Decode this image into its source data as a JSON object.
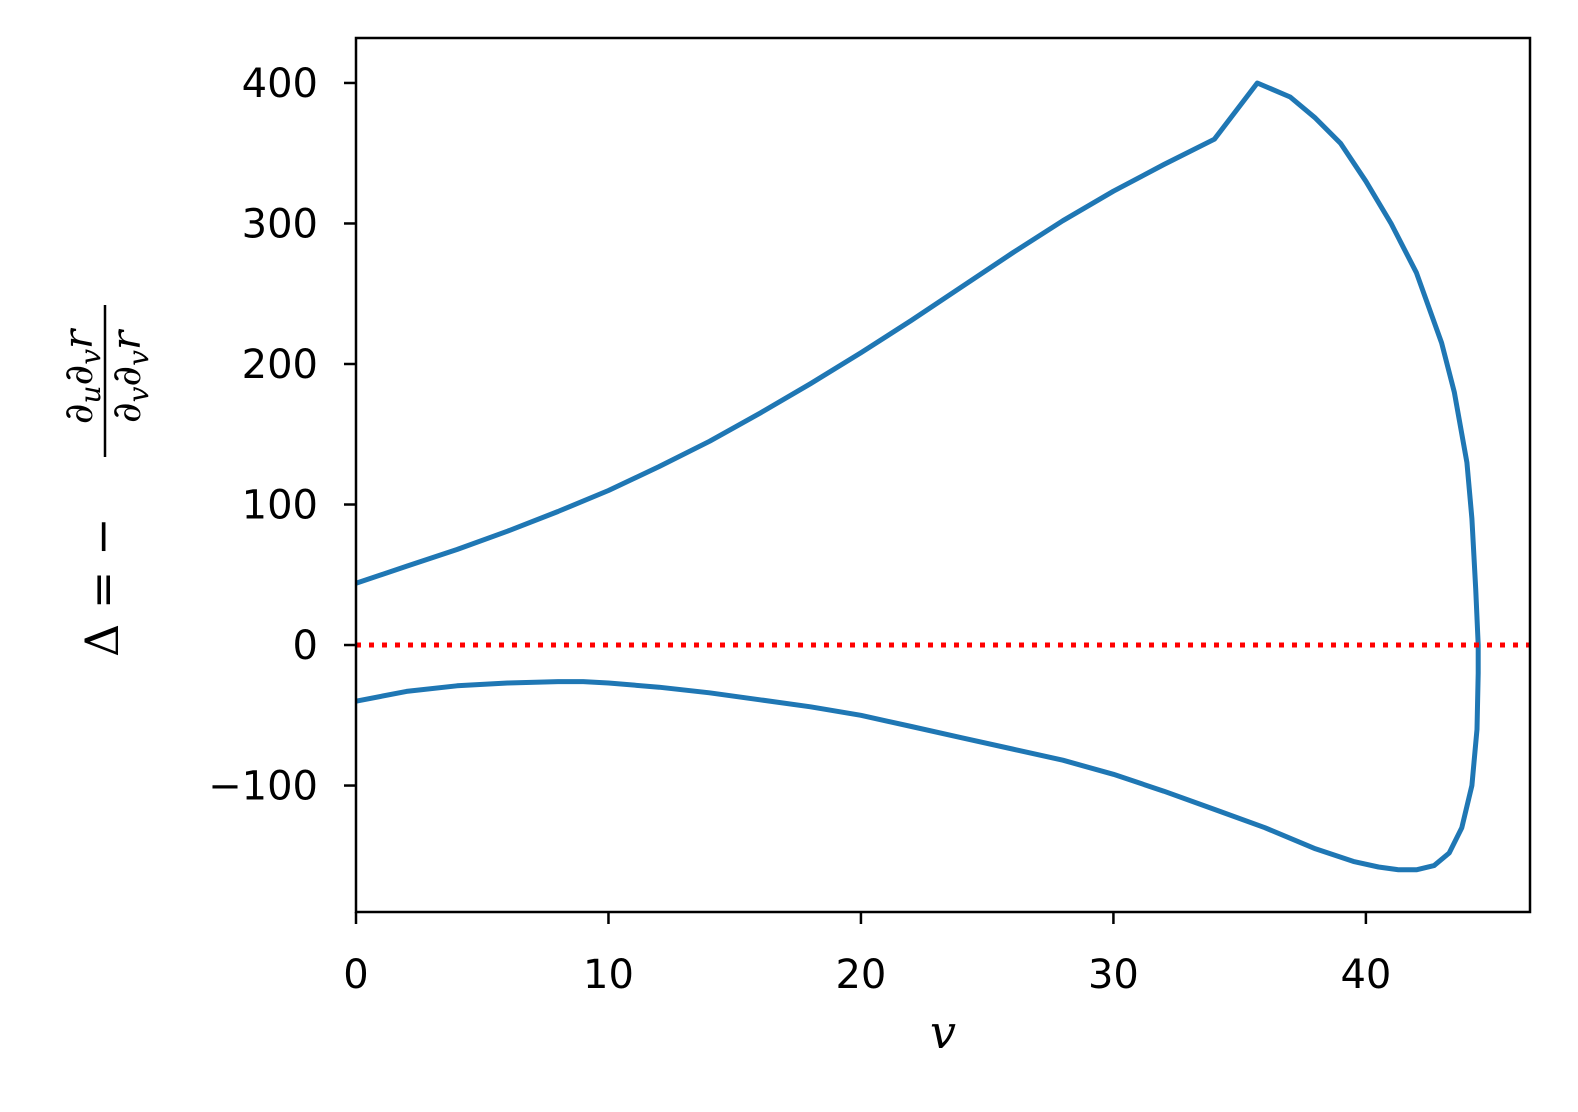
{
  "chart_data": {
    "type": "line",
    "title": "",
    "xlabel": "v",
    "ylabel": {
      "prefix": "Δ = −",
      "numerator": {
        "a": "∂",
        "a_sub": "u",
        "b": "∂",
        "b_sub": "v",
        "c": "r"
      },
      "denominator": {
        "a": "∂",
        "a_sub": "v",
        "b": "∂",
        "b_sub": "v",
        "c": "r"
      }
    },
    "xlim": [
      0,
      46.5
    ],
    "ylim": [
      -190,
      432
    ],
    "xticks": [
      0,
      10,
      20,
      30,
      40
    ],
    "yticks": [
      -100,
      0,
      100,
      200,
      300,
      400
    ],
    "xtick_labels": [
      "0",
      "10",
      "20",
      "30",
      "40"
    ],
    "ytick_labels": [
      "−100",
      "0",
      "100",
      "200",
      "300",
      "400"
    ],
    "grid": false,
    "series": [
      {
        "color": "#1f77b4",
        "style": "solid",
        "x": [
          0,
          2,
          4,
          6,
          8,
          10,
          12,
          14,
          16,
          18,
          20,
          22,
          24,
          26,
          28,
          30,
          32,
          34,
          35.7,
          37,
          38,
          39,
          40,
          41,
          42,
          43,
          43.5,
          44,
          44.2,
          44.35,
          44.45,
          44.45,
          44.4,
          44.2,
          43.8,
          43.3,
          42.7,
          42,
          41.3,
          40.5,
          39.5,
          38,
          36,
          34,
          32,
          30,
          28,
          26,
          24,
          22,
          20,
          18,
          16,
          14,
          12,
          10,
          9,
          8,
          6,
          4,
          2,
          0
        ],
        "y": [
          44,
          56,
          68,
          81,
          95,
          110,
          127,
          145,
          165,
          186,
          208,
          231,
          255,
          279,
          302,
          323,
          342,
          360,
          400,
          390,
          375,
          357,
          330,
          300,
          265,
          215,
          180,
          130,
          90,
          40,
          0,
          -20,
          -60,
          -100,
          -130,
          -148,
          -157,
          -160,
          -160,
          -158,
          -154,
          -145,
          -130,
          -117,
          -104,
          -92,
          -82,
          -74,
          -66,
          -58,
          -50,
          -44,
          -39,
          -34,
          -30,
          -27,
          -26,
          -26,
          -27,
          -29,
          -33,
          -40
        ]
      },
      {
        "color": "#ff0000",
        "style": "dotted",
        "x": [
          0,
          46.5
        ],
        "y": [
          0,
          0
        ]
      }
    ]
  }
}
